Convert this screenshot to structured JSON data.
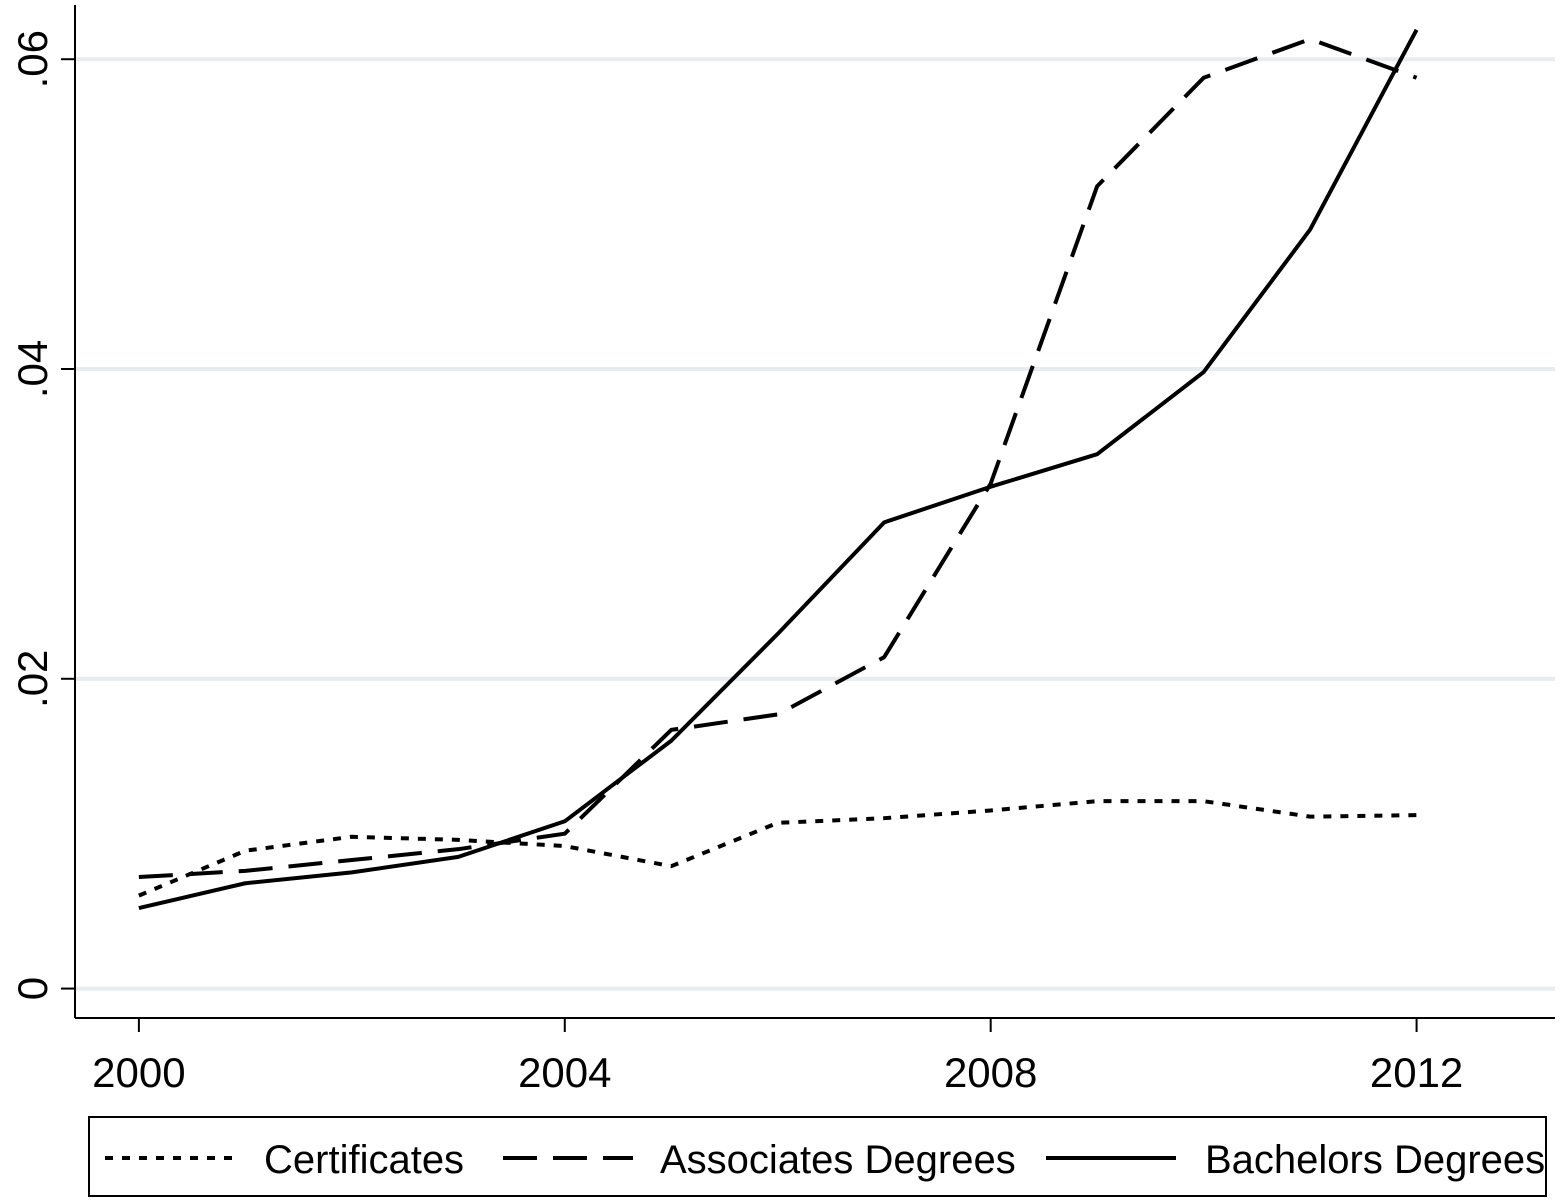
{
  "chart_data": {
    "type": "line",
    "title": "",
    "xlabel": "",
    "ylabel": "",
    "xlim": [
      1999.4,
      2013.3
    ],
    "ylim": [
      -0.0019,
      0.0635
    ],
    "x_ticks": [
      {
        "value": 2000,
        "label": "2000"
      },
      {
        "value": 2004,
        "label": "2004"
      },
      {
        "value": 2008,
        "label": "2008"
      },
      {
        "value": 2012,
        "label": "2012"
      }
    ],
    "y_ticks": [
      {
        "value": 0,
        "label": "0"
      },
      {
        "value": 0.02,
        "label": ".02"
      },
      {
        "value": 0.04,
        "label": ".04"
      },
      {
        "value": 0.06,
        "label": ".06"
      }
    ],
    "grid": true,
    "legend_position": "bottom",
    "x": [
      2000,
      2001,
      2002,
      2003,
      2004,
      2005,
      2006,
      2007,
      2008,
      2009,
      2010,
      2011,
      2012
    ],
    "series": [
      {
        "name": "Certificates",
        "style": "dotted",
        "values": [
          0.006,
          0.0089,
          0.0098,
          0.0096,
          0.0092,
          0.0079,
          0.0107,
          0.011,
          0.0115,
          0.0121,
          0.0121,
          0.0111,
          0.0112
        ]
      },
      {
        "name": "Associates Degrees",
        "style": "dashed",
        "values": [
          0.0072,
          0.0076,
          0.0083,
          0.009,
          0.01,
          0.0167,
          0.0177,
          0.0214,
          0.0326,
          0.0518,
          0.0588,
          0.0613,
          0.0588
        ]
      },
      {
        "name": "Bachelors Degrees",
        "style": "solid",
        "values": [
          0.0052,
          0.0068,
          0.0075,
          0.0085,
          0.0108,
          0.016,
          0.0229,
          0.0301,
          0.0324,
          0.0345,
          0.0398,
          0.049,
          0.0619
        ]
      }
    ],
    "colors": {
      "line": "#000000",
      "grid": "#e6ecef",
      "axis": "#000000",
      "background": "#ffffff"
    }
  }
}
